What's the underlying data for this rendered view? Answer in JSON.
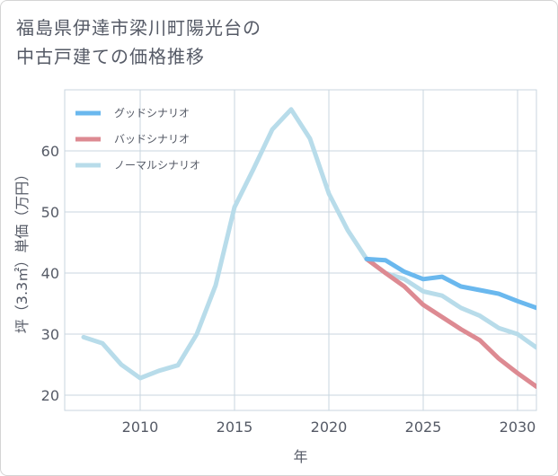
{
  "title_line1": "福島県伊達市梁川町陽光台の",
  "title_line2": "中古戸建ての価格推移",
  "chart_data": {
    "type": "line",
    "xlabel": "年",
    "ylabel": "坪（3.3㎡）単価（万円）",
    "xlim": [
      2006,
      2031
    ],
    "ylim": [
      17.5,
      70
    ],
    "xticks": [
      2010,
      2015,
      2020,
      2025,
      2030
    ],
    "yticks": [
      20,
      30,
      40,
      50,
      60
    ],
    "grid": true,
    "legend_position": "top-left",
    "series": [
      {
        "name": "グッドシナリオ",
        "color": "#6ab8ee",
        "x": [
          2022,
          2023,
          2024,
          2025,
          2026,
          2027,
          2028,
          2029,
          2030,
          2031
        ],
        "y": [
          42.3,
          42.1,
          40.2,
          39.0,
          39.4,
          37.8,
          37.2,
          36.6,
          35.4,
          34.3
        ]
      },
      {
        "name": "バッドシナリオ",
        "color": "#dd8a92",
        "x": [
          2022,
          2023,
          2024,
          2025,
          2026,
          2027,
          2028,
          2029,
          2030,
          2031
        ],
        "y": [
          42.3,
          40.0,
          37.8,
          34.8,
          32.8,
          30.8,
          29.0,
          26.0,
          23.6,
          21.4
        ]
      },
      {
        "name": "ノーマルシナリオ",
        "color": "#b8dcea",
        "x": [
          2007,
          2008,
          2009,
          2010,
          2011,
          2012,
          2013,
          2014,
          2015,
          2016,
          2017,
          2018,
          2019,
          2020,
          2021,
          2022,
          2023,
          2024,
          2025,
          2026,
          2027,
          2028,
          2029,
          2030,
          2031
        ],
        "y": [
          29.5,
          28.5,
          25.0,
          22.8,
          24.0,
          24.9,
          30.0,
          38.0,
          50.8,
          57.0,
          63.5,
          66.8,
          62.0,
          53.0,
          47.0,
          42.3,
          40.0,
          39.0,
          37.0,
          36.3,
          34.3,
          33.0,
          31.0,
          30.0,
          27.8
        ]
      }
    ]
  }
}
